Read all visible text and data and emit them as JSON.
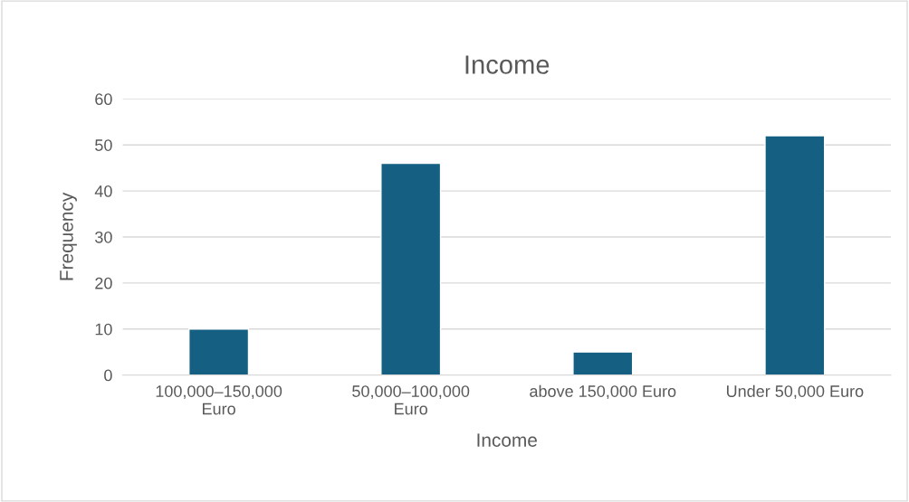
{
  "chart_data": {
    "type": "bar",
    "title": "Income",
    "xlabel": "Income",
    "ylabel": "Frequency",
    "categories": [
      "100,000–150,000 Euro",
      "50,000–100,000 Euro",
      "above 150,000 Euro",
      "Under 50,000 Euro"
    ],
    "values": [
      10,
      46,
      5,
      52
    ],
    "color": "#155f82",
    "ylim": [
      0,
      60
    ],
    "yticks": [
      0,
      10,
      20,
      30,
      40,
      50,
      60
    ],
    "grid": "y"
  }
}
